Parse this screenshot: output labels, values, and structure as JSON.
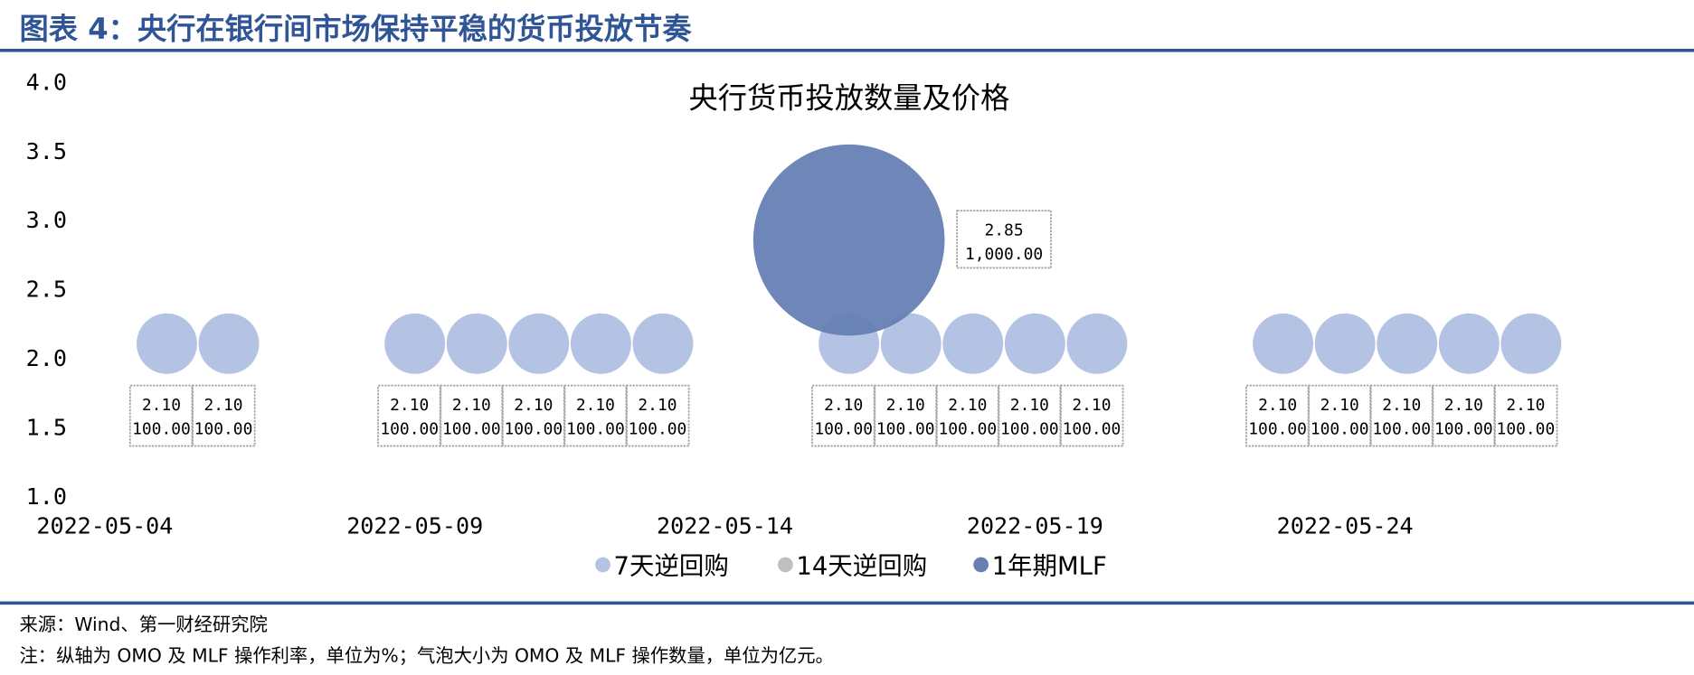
{
  "figure_title": "图表 4：央行在银行间市场保持平稳的货币投放节奏",
  "source": "来源：Wind、第一财经研究院",
  "note": "注：纵轴为 OMO 及 MLF 操作利率，单位为%；气泡大小为 OMO 及 MLF 操作数量，单位为亿元。",
  "colors": {
    "accent": "#2F5597",
    "omo7": "#B4C3E3",
    "omo14": "#BFBFBF",
    "mlf": "#6680B4"
  },
  "chart_data": {
    "type": "bubble",
    "title": "央行货币投放数量及价格",
    "xlabel": "",
    "ylabel": "",
    "ylim": [
      1.0,
      4.0
    ],
    "yticks": [
      "1.0",
      "1.5",
      "2.0",
      "2.5",
      "3.0",
      "3.5",
      "4.0"
    ],
    "xlim": [
      "2022-05-03",
      "2022-05-28"
    ],
    "xticks": [
      "2022-05-04",
      "2022-05-09",
      "2022-05-14",
      "2022-05-19",
      "2022-05-24"
    ],
    "legend_position": "bottom",
    "series": [
      {
        "name": "7天逆回购",
        "color": "#B4C3E3",
        "points": [
          {
            "x": "2022-05-05",
            "y": 2.1,
            "size": 100.0,
            "label_y": "2.10",
            "label_size": "100.00"
          },
          {
            "x": "2022-05-06",
            "y": 2.1,
            "size": 100.0,
            "label_y": "2.10",
            "label_size": "100.00"
          },
          {
            "x": "2022-05-09",
            "y": 2.1,
            "size": 100.0,
            "label_y": "2.10",
            "label_size": "100.00"
          },
          {
            "x": "2022-05-10",
            "y": 2.1,
            "size": 100.0,
            "label_y": "2.10",
            "label_size": "100.00"
          },
          {
            "x": "2022-05-11",
            "y": 2.1,
            "size": 100.0,
            "label_y": "2.10",
            "label_size": "100.00"
          },
          {
            "x": "2022-05-12",
            "y": 2.1,
            "size": 100.0,
            "label_y": "2.10",
            "label_size": "100.00"
          },
          {
            "x": "2022-05-13",
            "y": 2.1,
            "size": 100.0,
            "label_y": "2.10",
            "label_size": "100.00"
          },
          {
            "x": "2022-05-16",
            "y": 2.1,
            "size": 100.0,
            "label_y": "2.10",
            "label_size": "100.00"
          },
          {
            "x": "2022-05-17",
            "y": 2.1,
            "size": 100.0,
            "label_y": "2.10",
            "label_size": "100.00"
          },
          {
            "x": "2022-05-18",
            "y": 2.1,
            "size": 100.0,
            "label_y": "2.10",
            "label_size": "100.00"
          },
          {
            "x": "2022-05-19",
            "y": 2.1,
            "size": 100.0,
            "label_y": "2.10",
            "label_size": "100.00"
          },
          {
            "x": "2022-05-20",
            "y": 2.1,
            "size": 100.0,
            "label_y": "2.10",
            "label_size": "100.00"
          },
          {
            "x": "2022-05-23",
            "y": 2.1,
            "size": 100.0,
            "label_y": "2.10",
            "label_size": "100.00"
          },
          {
            "x": "2022-05-24",
            "y": 2.1,
            "size": 100.0,
            "label_y": "2.10",
            "label_size": "100.00"
          },
          {
            "x": "2022-05-25",
            "y": 2.1,
            "size": 100.0,
            "label_y": "2.10",
            "label_size": "100.00"
          },
          {
            "x": "2022-05-26",
            "y": 2.1,
            "size": 100.0,
            "label_y": "2.10",
            "label_size": "100.00"
          },
          {
            "x": "2022-05-27",
            "y": 2.1,
            "size": 100.0,
            "label_y": "2.10",
            "label_size": "100.00"
          }
        ]
      },
      {
        "name": "14天逆回购",
        "color": "#BFBFBF",
        "points": []
      },
      {
        "name": "1年期MLF",
        "color": "#6680B4",
        "points": [
          {
            "x": "2022-05-16",
            "y": 2.85,
            "size": 1000.0,
            "label_y": "2.85",
            "label_size": "1,000.00"
          }
        ]
      }
    ]
  }
}
